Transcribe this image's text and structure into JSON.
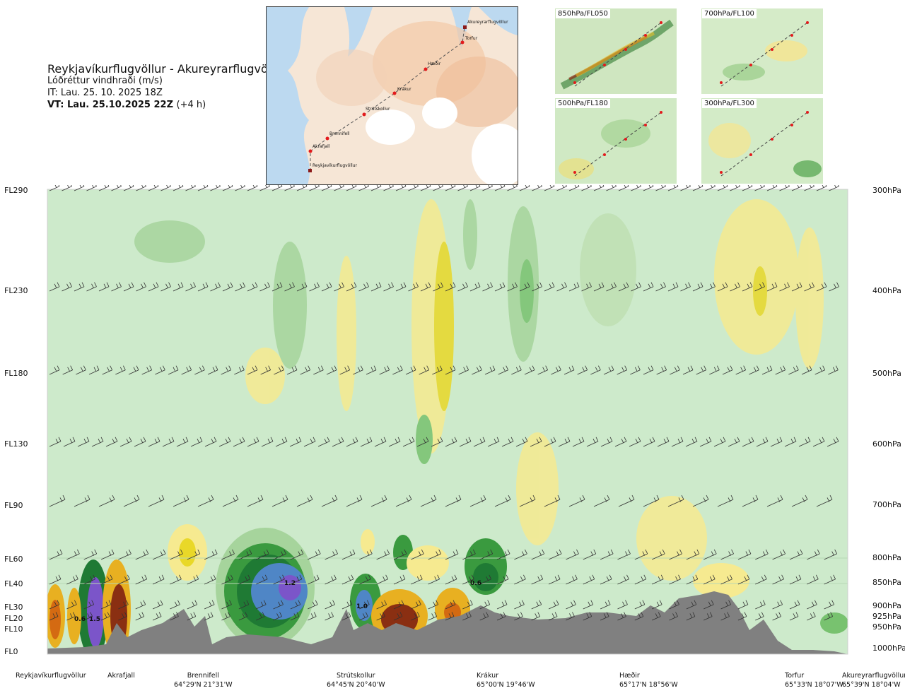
{
  "header": {
    "route": "Reykjavíkurflugvöllur - Akureyrarflugvöllur",
    "variable": "Lóðréttur vindhraði (m/s)",
    "it": "IT: Lau. 25. 10. 2025 18Z",
    "vt": "VT: Lau. 25.10.2025 22Z",
    "vt_offset": "(+4 h)"
  },
  "map": {
    "points": [
      "Akureyrarflugvöllur",
      "Torfur",
      "Hæðir",
      "Krákur",
      "Strútskollur",
      "Brennifell",
      "Akrafjall",
      "Reykjavíkurflugvöllur"
    ],
    "colors": {
      "sea": "#bcd9f0",
      "land": "#f6e9dd",
      "ice": "#ffffff",
      "route": "#555555",
      "point": "#e31a1c"
    }
  },
  "mini_maps": [
    "850hPa/FL050",
    "700hPa/FL100",
    "500hPa/FL180",
    "300hPa/FL300"
  ],
  "flight_levels": [
    "FL290",
    "FL230",
    "FL180",
    "FL130",
    "FL90",
    "FL60",
    "FL40",
    "FL30",
    "FL20",
    "FL10",
    "FL0"
  ],
  "pressure_levels": [
    "300hPa",
    "400hPa",
    "500hPa",
    "600hPa",
    "700hPa",
    "800hPa",
    "850hPa",
    "900hPa",
    "925hPa",
    "950hPa",
    "1000hPa"
  ],
  "locations": [
    {
      "name": "Reykjavíkurflugvöllur",
      "coord": ""
    },
    {
      "name": "Akrafjall",
      "coord": ""
    },
    {
      "name": "Brennifell",
      "coord": "64°29'N 21°31'W"
    },
    {
      "name": "Strútskollur",
      "coord": "64°45'N 20°40'W"
    },
    {
      "name": "Krákur",
      "coord": "65°00'N 19°46'W"
    },
    {
      "name": "Hæðir",
      "coord": "65°17'N 18°56'W"
    },
    {
      "name": "Torfur",
      "coord": "65°33'N 18°07'W"
    },
    {
      "name": "Akureyrarflugvöllur",
      "coord": "65°39'N 18°04'W"
    }
  ],
  "chart_data": {
    "type": "heatmap",
    "title": "Reykjavíkurflugvöllur - Akureyrarflugvöllur",
    "variable": "Lóðréttur vindhraði (m/s)",
    "x": [
      "Reykjavíkurflugvöllur",
      "Akrafjall",
      "Brennifell",
      "Strútskollur",
      "Krákur",
      "Hæðir",
      "Torfur",
      "Akureyrarflugvöllur"
    ],
    "y_left": [
      "FL0",
      "FL10",
      "FL20",
      "FL30",
      "FL40",
      "FL60",
      "FL90",
      "FL130",
      "FL180",
      "FL230",
      "FL290"
    ],
    "y_right": [
      "1000hPa",
      "950hPa",
      "925hPa",
      "900hPa",
      "850hPa",
      "800hPa",
      "700hPa",
      "600hPa",
      "500hPa",
      "400hPa",
      "300hPa"
    ],
    "annotations": [
      {
        "text": "0.6",
        "near": "Akrafjall",
        "level": "FL20"
      },
      {
        "text": "1.5",
        "near": "Akrafjall",
        "level": "FL20"
      },
      {
        "text": "1.2",
        "near": "Brennifell–Strútskollur",
        "level": "FL40"
      },
      {
        "text": "1.0",
        "near": "Strútskollur",
        "level": "FL30"
      },
      {
        "text": "0.6",
        "near": "Krákur",
        "level": "FL40"
      }
    ],
    "colors": {
      "background": "#cdeacb",
      "updraft": [
        "#a6d49c",
        "#78c26f",
        "#3a9a3f",
        "#1f7a34",
        "#4f86c6",
        "#7b55c9"
      ],
      "downdraft": [
        "#fff5c0",
        "#f6ea90",
        "#e9d828",
        "#e8b021",
        "#d46a12",
        "#8a2f12"
      ],
      "terrain": "#808080"
    }
  }
}
